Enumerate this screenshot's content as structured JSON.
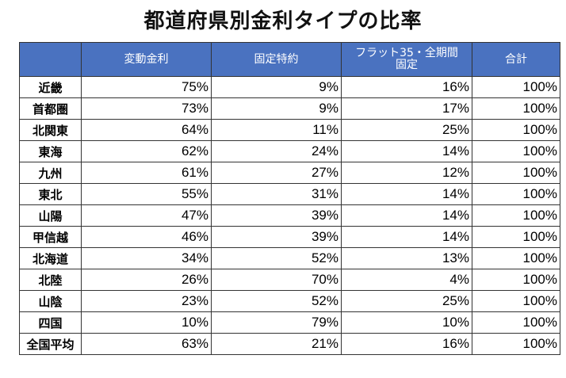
{
  "title": "都道府県別金利タイプの比率",
  "chart_data": {
    "type": "table",
    "title": "都道府県別金利タイプの比率",
    "columns": [
      "",
      "変動金利",
      "固定特約",
      "フラット35・全期間固定",
      "合計"
    ],
    "column_labels": [
      "",
      "変動金利",
      "固定特約",
      "フラット35・全期間\n固定",
      "合計"
    ],
    "rows": [
      {
        "region": "近畿",
        "values": [
          "75%",
          "9%",
          "16%",
          "100%"
        ]
      },
      {
        "region": "首都圏",
        "values": [
          "73%",
          "9%",
          "17%",
          "100%"
        ]
      },
      {
        "region": "北関東",
        "values": [
          "64%",
          "11%",
          "25%",
          "100%"
        ]
      },
      {
        "region": "東海",
        "values": [
          "62%",
          "24%",
          "14%",
          "100%"
        ]
      },
      {
        "region": "九州",
        "values": [
          "61%",
          "27%",
          "12%",
          "100%"
        ]
      },
      {
        "region": "東北",
        "values": [
          "55%",
          "31%",
          "14%",
          "100%"
        ]
      },
      {
        "region": "山陽",
        "values": [
          "47%",
          "39%",
          "14%",
          "100%"
        ]
      },
      {
        "region": "甲信越",
        "values": [
          "46%",
          "39%",
          "14%",
          "100%"
        ]
      },
      {
        "region": "北海道",
        "values": [
          "34%",
          "52%",
          "13%",
          "100%"
        ]
      },
      {
        "region": "北陸",
        "values": [
          "26%",
          "70%",
          "4%",
          "100%"
        ]
      },
      {
        "region": "山陰",
        "values": [
          "23%",
          "52%",
          "25%",
          "100%"
        ]
      },
      {
        "region": "四国",
        "values": [
          "10%",
          "79%",
          "10%",
          "100%"
        ]
      },
      {
        "region": "全国平均",
        "values": [
          "63%",
          "21%",
          "16%",
          "100%"
        ]
      }
    ]
  },
  "colors": {
    "header_bg": "#4a72c0",
    "header_text": "#ffffff",
    "border": "#333333"
  }
}
